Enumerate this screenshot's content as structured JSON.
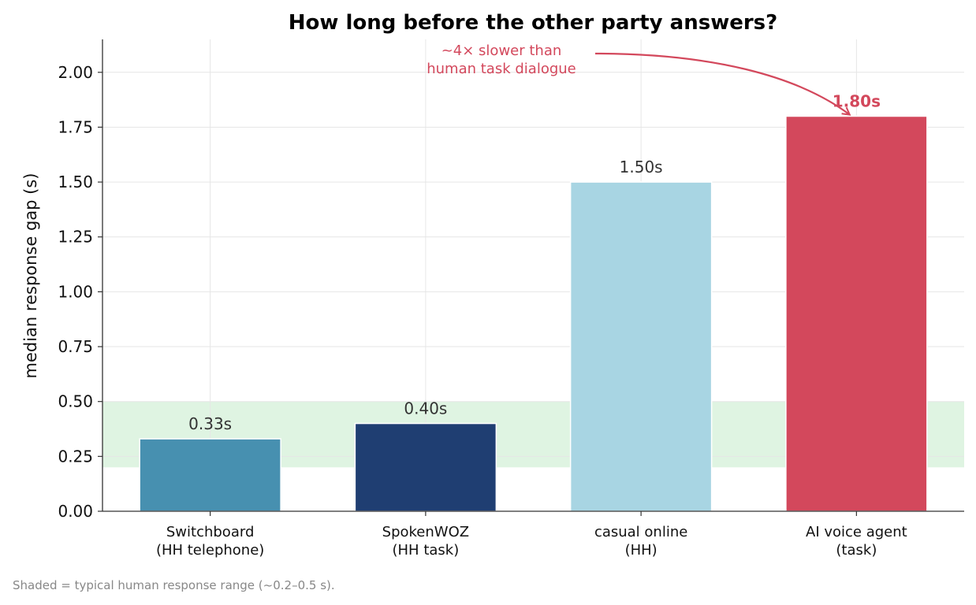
{
  "chart_data": {
    "type": "bar",
    "title": "How long before the other party answers?",
    "ylabel": "median response gap (s)",
    "xlabel": "",
    "ylim": [
      0,
      2.15
    ],
    "yticks": [
      0.0,
      0.25,
      0.5,
      0.75,
      1.0,
      1.25,
      1.5,
      1.75,
      2.0
    ],
    "ytick_labels": [
      "0.00",
      "0.25",
      "0.50",
      "0.75",
      "1.00",
      "1.25",
      "1.50",
      "1.75",
      "2.00"
    ],
    "grid": true,
    "categories": [
      {
        "line1": "Switchboard",
        "line2": "(HH telephone)"
      },
      {
        "line1": "SpokenWOZ",
        "line2": "(HH task)"
      },
      {
        "line1": "casual online",
        "line2": "(HH)"
      },
      {
        "line1": "AI voice agent",
        "line2": "(task)"
      }
    ],
    "values": [
      0.33,
      0.4,
      1.5,
      1.8
    ],
    "value_labels": [
      "0.33s",
      "0.40s",
      "1.50s",
      "1.80s"
    ],
    "colors": [
      "#4790b0",
      "#1f3e72",
      "#a8d5e3",
      "#d3485c"
    ],
    "label_colors": [
      "#333333",
      "#333333",
      "#333333",
      "#d3485c"
    ],
    "highlight_index": 3,
    "shaded_band": {
      "from": 0.2,
      "to": 0.5,
      "color": "#dff4e2"
    },
    "annotation": {
      "line1": "~4× slower than",
      "line2": "human task dialogue",
      "color": "#d3485c",
      "target_index": 3
    },
    "footnote": "Shaded = typical human response range (~0.2–0.5 s)."
  }
}
